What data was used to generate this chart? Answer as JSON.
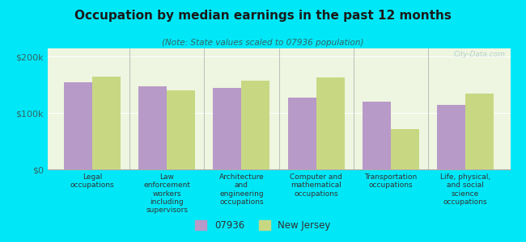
{
  "title": "Occupation by median earnings in the past 12 months",
  "subtitle": "(Note: State values scaled to 07936 population)",
  "background_color": "#00e8f8",
  "plot_bg_color": "#eef5e0",
  "categories": [
    "Legal\noccupations",
    "Law\nenforcement\nworkers\nincluding\nsupervisors",
    "Architecture\nand\nengineering\noccupations",
    "Computer and\nmathematical\noccupations",
    "Transportation\noccupations",
    "Life, physical,\nand social\nscience\noccupations"
  ],
  "values_07936": [
    155000,
    148000,
    145000,
    128000,
    120000,
    115000
  ],
  "values_nj": [
    165000,
    140000,
    158000,
    163000,
    72000,
    135000
  ],
  "color_07936": "#b89ac8",
  "color_nj": "#c8d882",
  "ylim": [
    0,
    215000
  ],
  "yticks": [
    0,
    100000,
    200000
  ],
  "ytick_labels": [
    "$0",
    "$100k",
    "$200k"
  ],
  "legend_07936": "07936",
  "legend_nj": "New Jersey",
  "bar_width": 0.38,
  "watermark": "City-Data.com"
}
